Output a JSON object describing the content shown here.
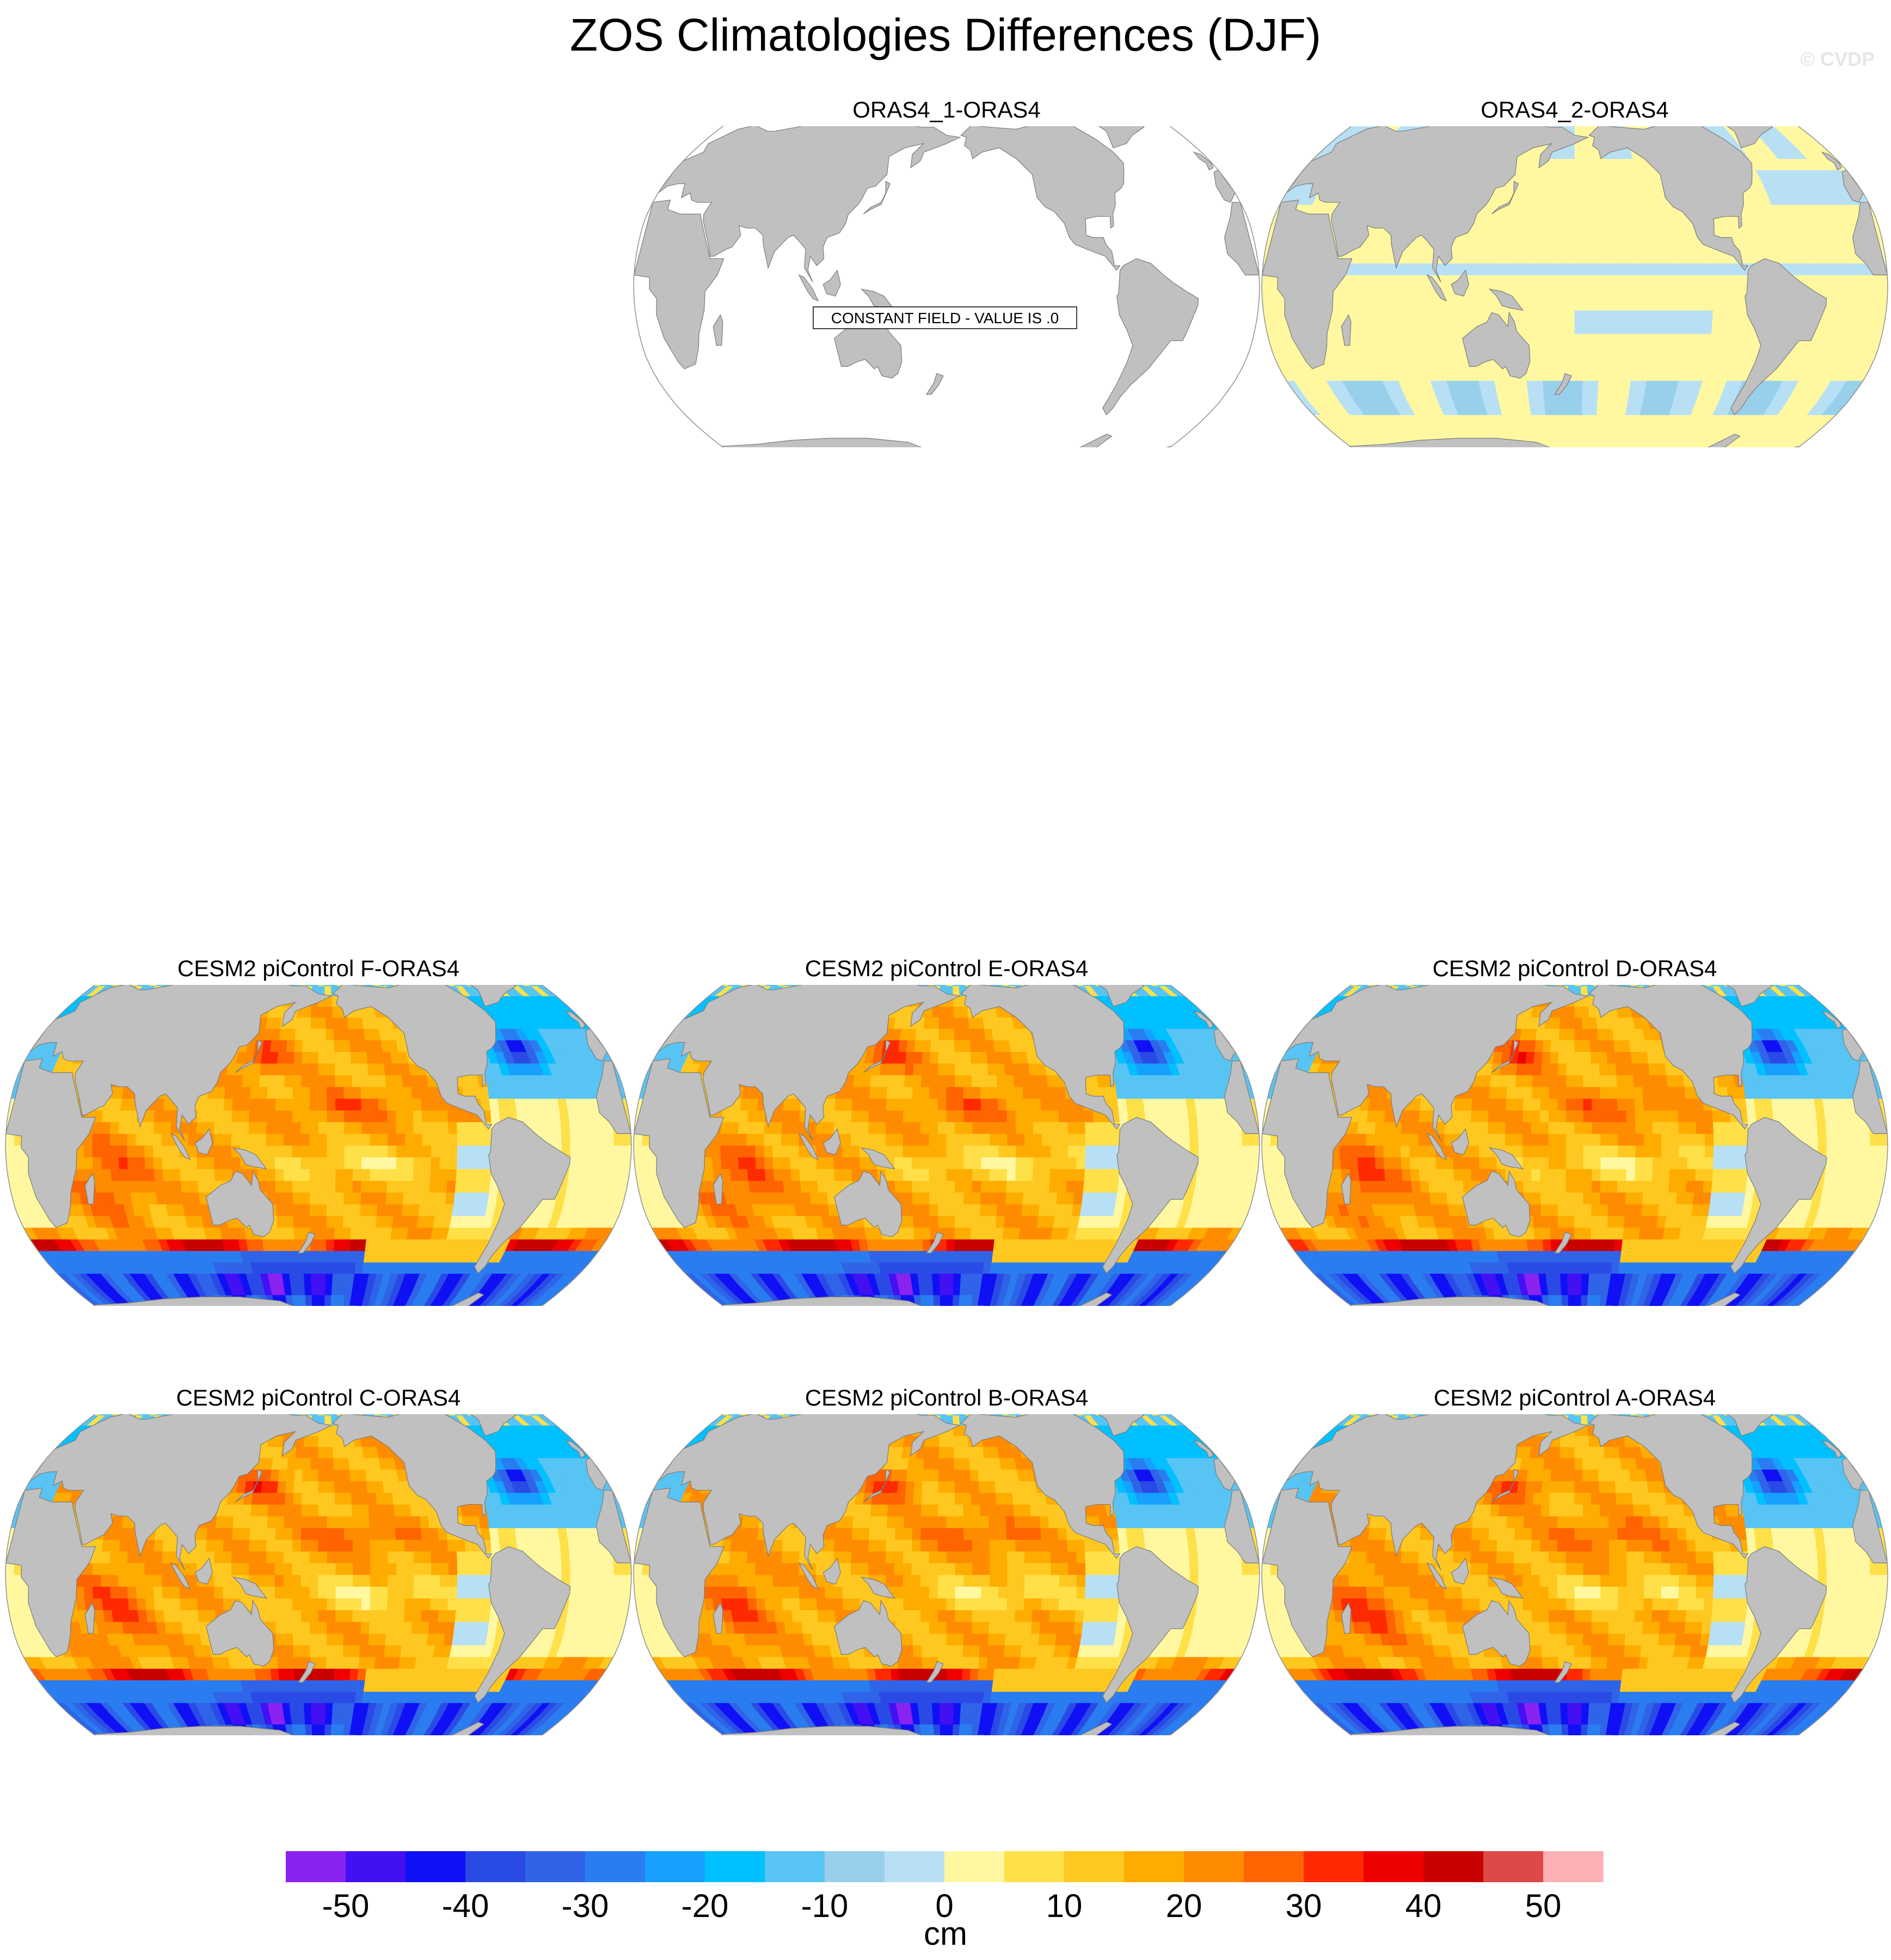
{
  "title": "ZOS Climatologies Differences (DJF)",
  "watermark": "© CVDP",
  "constant_note": "CONSTANT FIELD - VALUE IS .0",
  "colors": {
    "land": "#c0c0c0",
    "coast": "#7a7a7a",
    "missing_ocean": "#ffffff"
  },
  "panels": [
    {
      "title": "ORAS4_1-ORAS4",
      "pattern": "constant"
    },
    {
      "title": "ORAS4_2-ORAS4",
      "pattern": "weak"
    },
    {
      "title": "CESM2 piControl F-ORAS4",
      "pattern": "model"
    },
    {
      "title": "CESM2 piControl E-ORAS4",
      "pattern": "model"
    },
    {
      "title": "CESM2 piControl D-ORAS4",
      "pattern": "model"
    },
    {
      "title": "CESM2 piControl C-ORAS4",
      "pattern": "model"
    },
    {
      "title": "CESM2 piControl B-ORAS4",
      "pattern": "model"
    },
    {
      "title": "CESM2 piControl A-ORAS4",
      "pattern": "model"
    }
  ],
  "chart_data": {
    "type": "heatmap",
    "title": "ZOS Climatologies Differences (DJF)",
    "projection": "Robinson, Pacific-centred",
    "units": "cm",
    "colorbar": {
      "label": "cm",
      "tick_labels": [
        "-50",
        "-40",
        "-30",
        "-20",
        "-10",
        "0",
        "10",
        "20",
        "30",
        "40",
        "50"
      ],
      "levels": [
        -55,
        -50,
        -45,
        -40,
        -35,
        -30,
        -25,
        -20,
        -15,
        -10,
        -5,
        0,
        5,
        10,
        15,
        20,
        25,
        30,
        35,
        40,
        45,
        50,
        55
      ],
      "colors": [
        "#8a22f0",
        "#4210f2",
        "#1010f5",
        "#2a4ae6",
        "#3064e8",
        "#2a7df0",
        "#16a0ff",
        "#00c0ff",
        "#58c4f4",
        "#98d0ec",
        "#b8e0f5",
        "#fff8a0",
        "#ffe048",
        "#ffc820",
        "#ffac00",
        "#ff8c00",
        "#ff6400",
        "#ff2a00",
        "#ee0000",
        "#c80000",
        "#dd4848",
        "#ffb0b4"
      ]
    },
    "panels": [
      {
        "name": "ORAS4_1-ORAS4",
        "value": 0
      },
      {
        "name": "ORAS4_2-ORAS4",
        "range": [
          -10,
          5
        ]
      },
      {
        "name": "CESM2 piControl F-ORAS4",
        "range": [
          -55,
          55
        ]
      },
      {
        "name": "CESM2 piControl E-ORAS4",
        "range": [
          -55,
          55
        ]
      },
      {
        "name": "CESM2 piControl D-ORAS4",
        "range": [
          -55,
          55
        ]
      },
      {
        "name": "CESM2 piControl C-ORAS4",
        "range": [
          -55,
          55
        ]
      },
      {
        "name": "CESM2 piControl B-ORAS4",
        "range": [
          -55,
          55
        ]
      },
      {
        "name": "CESM2 piControl A-ORAS4",
        "range": [
          -55,
          55
        ]
      }
    ]
  }
}
